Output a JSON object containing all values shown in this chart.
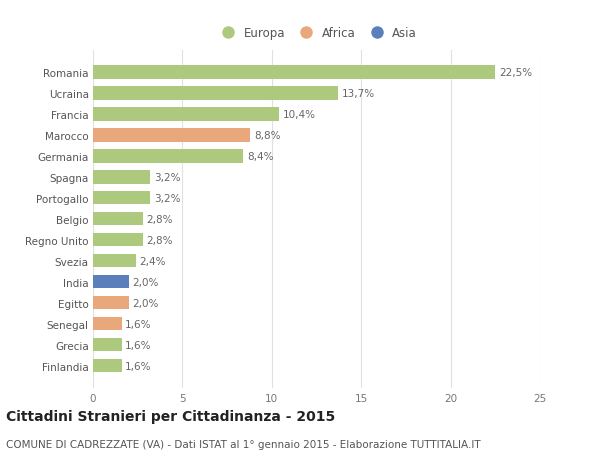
{
  "countries": [
    "Romania",
    "Ucraina",
    "Francia",
    "Marocco",
    "Germania",
    "Spagna",
    "Portogallo",
    "Belgio",
    "Regno Unito",
    "Svezia",
    "India",
    "Egitto",
    "Senegal",
    "Grecia",
    "Finlandia"
  ],
  "values": [
    22.5,
    13.7,
    10.4,
    8.8,
    8.4,
    3.2,
    3.2,
    2.8,
    2.8,
    2.4,
    2.0,
    2.0,
    1.6,
    1.6,
    1.6
  ],
  "labels": [
    "22,5%",
    "13,7%",
    "10,4%",
    "8,8%",
    "8,4%",
    "3,2%",
    "3,2%",
    "2,8%",
    "2,8%",
    "2,4%",
    "2,0%",
    "2,0%",
    "1,6%",
    "1,6%",
    "1,6%"
  ],
  "continents": [
    "Europa",
    "Europa",
    "Europa",
    "Africa",
    "Europa",
    "Europa",
    "Europa",
    "Europa",
    "Europa",
    "Europa",
    "Asia",
    "Africa",
    "Africa",
    "Europa",
    "Europa"
  ],
  "colors": {
    "Europa": "#adc97e",
    "Africa": "#e8a87c",
    "Asia": "#5b7fbd"
  },
  "xlim": [
    0,
    25
  ],
  "xticks": [
    0,
    5,
    10,
    15,
    20,
    25
  ],
  "title": "Cittadini Stranieri per Cittadinanza - 2015",
  "subtitle": "COMUNE DI CADREZZATE (VA) - Dati ISTAT al 1° gennaio 2015 - Elaborazione TUTTITALIA.IT",
  "bg_color": "#ffffff",
  "grid_color": "#e0e0e0",
  "bar_height": 0.65,
  "title_fontsize": 10,
  "subtitle_fontsize": 7.5,
  "label_fontsize": 7.5,
  "tick_fontsize": 7.5,
  "legend_fontsize": 8.5
}
